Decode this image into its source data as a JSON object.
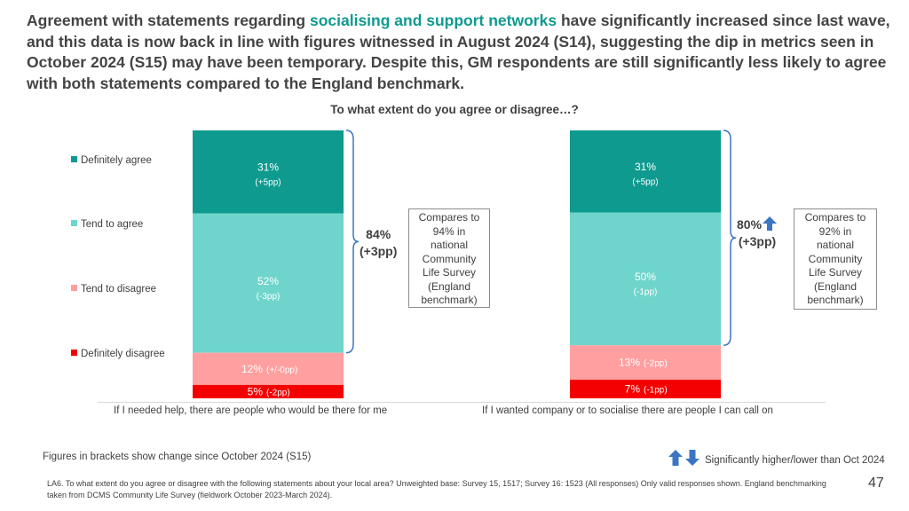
{
  "headline": {
    "part1": "Agreement with statements regarding ",
    "highlight": "socialising and support networks",
    "part2": " have significantly increased since last wave, and this data is now back in line with figures witnessed in August 2024 (S14), suggesting the dip in metrics seen in October 2024 (S15) may have been temporary. Despite this, GM respondents are still significantly less likely to agree with both statements compared to the England benchmark."
  },
  "subtitle": "To what extent do you agree or disagree…?",
  "colors": {
    "definitely_agree": "#0e9a8f",
    "tend_to_agree": "#6fd5cc",
    "tend_to_disagree": "#ff9f9f",
    "definitely_disagree": "#f50000",
    "headline_highlight": "#0e9a8f",
    "arrow_blue": "#3b75c4"
  },
  "chart_data": {
    "type": "bar",
    "stacked": true,
    "orientation": "vertical",
    "scale": "percent",
    "categories": [
      "If I needed help, there are people who would be there for me",
      "If I wanted company or to socialise there are people I can call on"
    ],
    "series": [
      {
        "name": "Definitely agree",
        "values": [
          31,
          31
        ],
        "labels": [
          "31%",
          "31%"
        ],
        "changes": [
          "(+5pp)",
          "(+5pp)"
        ]
      },
      {
        "name": "Tend to agree",
        "values": [
          52,
          50
        ],
        "labels": [
          "52%",
          "50%"
        ],
        "changes": [
          "(-3pp)",
          "(-1pp)"
        ]
      },
      {
        "name": "Tend to disagree",
        "values": [
          12,
          13
        ],
        "labels": [
          "12%",
          "13%"
        ],
        "changes": [
          "(+/-0pp)",
          "(-2pp)"
        ]
      },
      {
        "name": "Definitely disagree",
        "values": [
          5,
          7
        ],
        "labels": [
          "5%",
          "7%"
        ],
        "changes": [
          "(-2pp)",
          "(-1pp)"
        ]
      }
    ],
    "legend_position": "left",
    "grid": false
  },
  "totals": [
    {
      "value": "84%",
      "change": "(+3pp)",
      "significance": "none"
    },
    {
      "value": "80%",
      "change": "(+3pp)",
      "significance": "up"
    }
  ],
  "callouts": [
    "Compares to\n94% in\nnational\nCommunity\nLife Survey\n(England\nbenchmark)",
    "Compares to\n92% in\nnational\nCommunity\nLife Survey\n(England\nbenchmark)"
  ],
  "footer_note": "Figures in brackets show change since October 2024 (S15)",
  "significance_key": {
    "icon": "up-down-arrows-icon",
    "text": "Significantly higher/lower than Oct 2024"
  },
  "footnote": "LA6. To what extent do you agree or disagree with the following statements about your local area? Unweighted base: Survey 15, 1517; Survey 16: 1523 (All responses) Only valid responses shown. England benchmarking taken from DCMS Community Life Survey (fieldwork October 2023-March 2024).",
  "page_number": "47"
}
